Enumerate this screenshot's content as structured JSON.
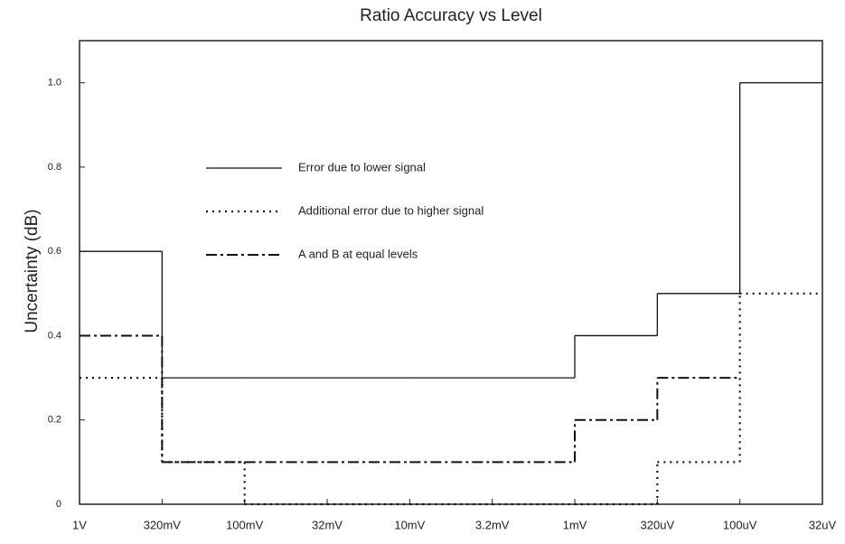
{
  "chart_data": {
    "type": "step",
    "title": "Ratio Accuracy vs Level",
    "y_label": "Uncertainty (dB)",
    "categories": [
      "1V",
      "320mV",
      "100mV",
      "32mV",
      "10mV",
      "3.2mV",
      "1mV",
      "320uV",
      "100uV",
      "32uV"
    ],
    "series": [
      {
        "name": "Error due to lower signal",
        "color": "#111111",
        "style": "solid",
        "values": [
          0.6,
          0.3,
          0.3,
          0.3,
          0.3,
          0.3,
          0.4,
          0.5,
          1.0,
          null
        ]
      },
      {
        "name": "Additional error due to higher signal",
        "color": "#111111",
        "style": "dotted",
        "values": [
          0.3,
          0.1,
          0,
          0,
          0,
          0,
          0,
          0.1,
          0.5,
          null
        ]
      },
      {
        "name": "A and B at equal levels",
        "color": "#111111",
        "style": "dashdot",
        "values": [
          0.4,
          0.1,
          0.1,
          0.1,
          0.1,
          0.1,
          0.2,
          0.3,
          null,
          null
        ]
      }
    ],
    "ylim": [
      0,
      1.1
    ],
    "yticks": [
      0,
      0.2,
      0.4,
      0.6,
      0.8,
      {
        "value": 1,
        "label": "1.0"
      }
    ],
    "grid": false
  }
}
